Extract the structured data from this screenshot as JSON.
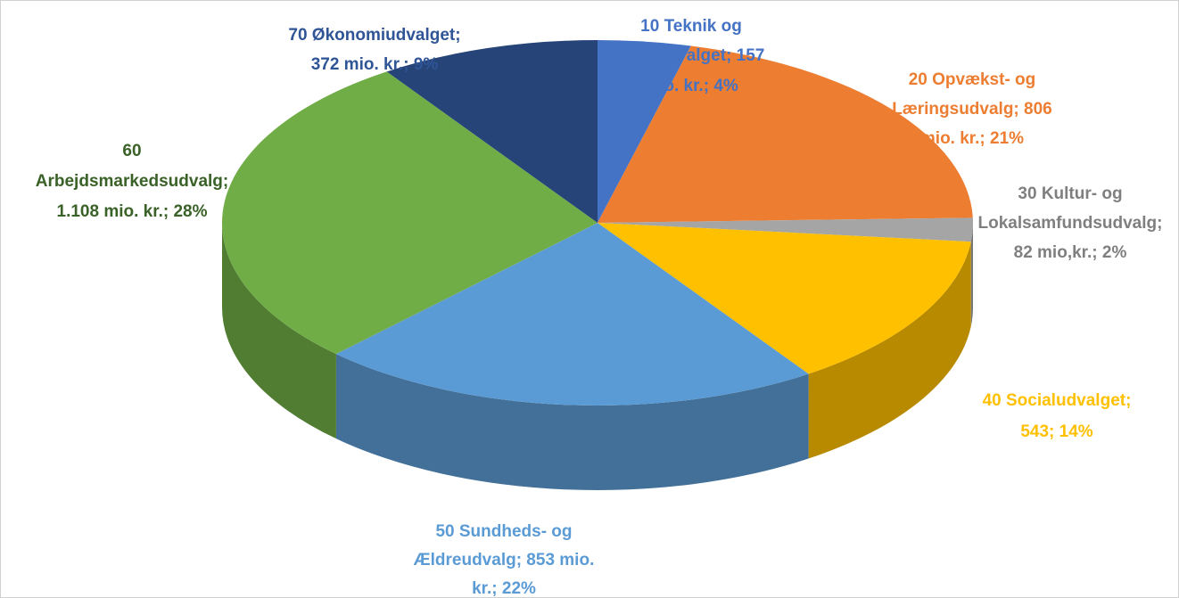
{
  "chart_data": {
    "type": "pie",
    "categories": null,
    "values": [
      157,
      806,
      82,
      543,
      853,
      1108,
      372
    ],
    "value_labels": [
      [
        "10 Teknik og",
        "Miljøudvalget; 157",
        "mio. kr.; 4%"
      ],
      [
        "20 Opvækst- og",
        "Læringsudvalg; 806",
        "mio. kr.; 21%"
      ],
      [
        "30 Kultur- og",
        "Lokalsamfundsudvalg;",
        "82 mio,kr.; 2%"
      ],
      [
        "40 Socialudvalget;",
        "543; 14%"
      ],
      [
        "50 Sundheds- og",
        "Ældreudvalg; 853 mio.",
        "kr.; 22%"
      ],
      [
        "60",
        "Arbejdsmarkedsudvalg;",
        "1.108 mio. kr.; 28%"
      ],
      [
        "70 Økonomiudvalget;",
        "372 mio. kr.; 9%"
      ]
    ],
    "colors": [
      "#4472c4",
      "#ed7d31",
      "#a5a5a5",
      "#ffc000",
      "#5b9bd5",
      "#70ad47",
      "#264478"
    ],
    "label_colors": [
      "#4472c4",
      "#ed7d31",
      "#7f7f7f",
      "#ffc000",
      "#5b9bd5",
      "#3a6127",
      "#2f5597"
    ]
  }
}
